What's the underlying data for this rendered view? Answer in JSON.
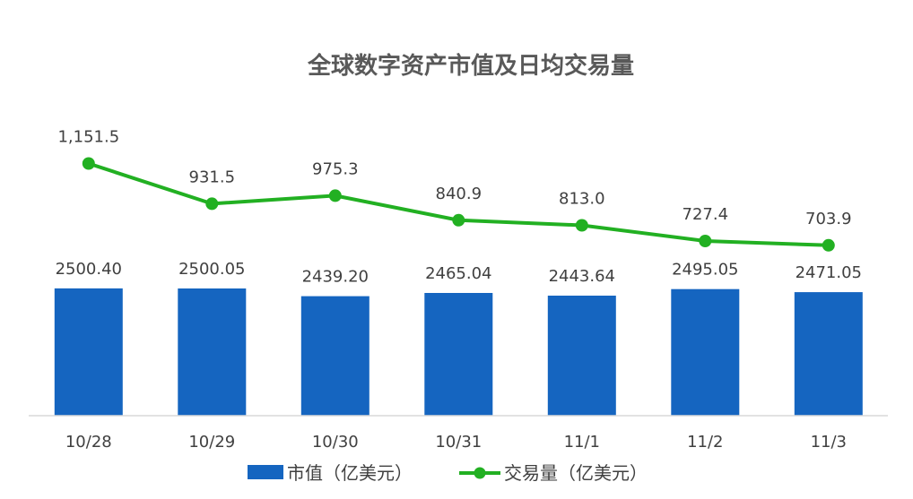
{
  "chart_data": {
    "type": "bar",
    "title": "全球数字资产市值及日均交易量",
    "categories": [
      "10/28",
      "10/29",
      "10/30",
      "10/31",
      "11/1",
      "11/2",
      "11/3"
    ],
    "series": [
      {
        "name": "市值（亿美元）",
        "type": "bar",
        "color": "#1565c0",
        "values": [
          2500.4,
          2500.05,
          2439.2,
          2465.04,
          2443.64,
          2495.05,
          2471.05
        ],
        "labels": [
          "2500.40",
          "2500.05",
          "2439.20",
          "2465.04",
          "2443.64",
          "2495.05",
          "2471.05"
        ]
      },
      {
        "name": "交易量（亿美元）",
        "type": "line",
        "color": "#22b022",
        "values": [
          1151.5,
          931.5,
          975.3,
          840.9,
          813.0,
          727.4,
          703.9
        ],
        "labels": [
          "1,151.5",
          "931.5",
          "975.3",
          "840.9",
          "813.0",
          "727.4",
          "703.9"
        ]
      }
    ],
    "legend": "bottom",
    "grid": false
  }
}
